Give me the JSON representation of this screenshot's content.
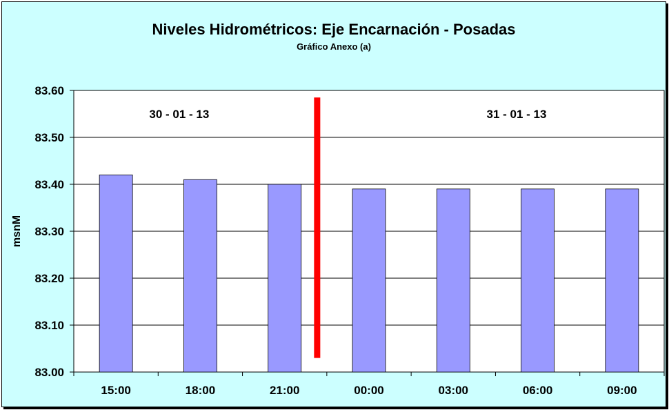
{
  "chart_data": {
    "type": "bar",
    "title": "Niveles Hidrométricos: Eje Encarnación - Posadas",
    "subtitle": "Gráfico Anexo (a)",
    "ylabel": "msnM",
    "xlabel": "",
    "categories": [
      "15:00",
      "18:00",
      "21:00",
      "00:00",
      "03:00",
      "06:00",
      "09:00"
    ],
    "values": [
      83.42,
      83.41,
      83.4,
      83.39,
      83.39,
      83.39,
      83.39
    ],
    "ylim": [
      83.0,
      83.6
    ],
    "yticks": [
      "83.00",
      "83.10",
      "83.20",
      "83.30",
      "83.40",
      "83.50",
      "83.60"
    ],
    "grid": true,
    "legend": "none",
    "annotations": {
      "date_left": "30 - 01 - 13",
      "date_right": "31 - 01 - 13",
      "separator_between": [
        2,
        3
      ],
      "separator_range": [
        83.03,
        83.585
      ]
    },
    "colors": {
      "bar": "#9999ff",
      "separator": "#ff0000",
      "background": "#ccffff",
      "plot": "#ffffff"
    }
  }
}
